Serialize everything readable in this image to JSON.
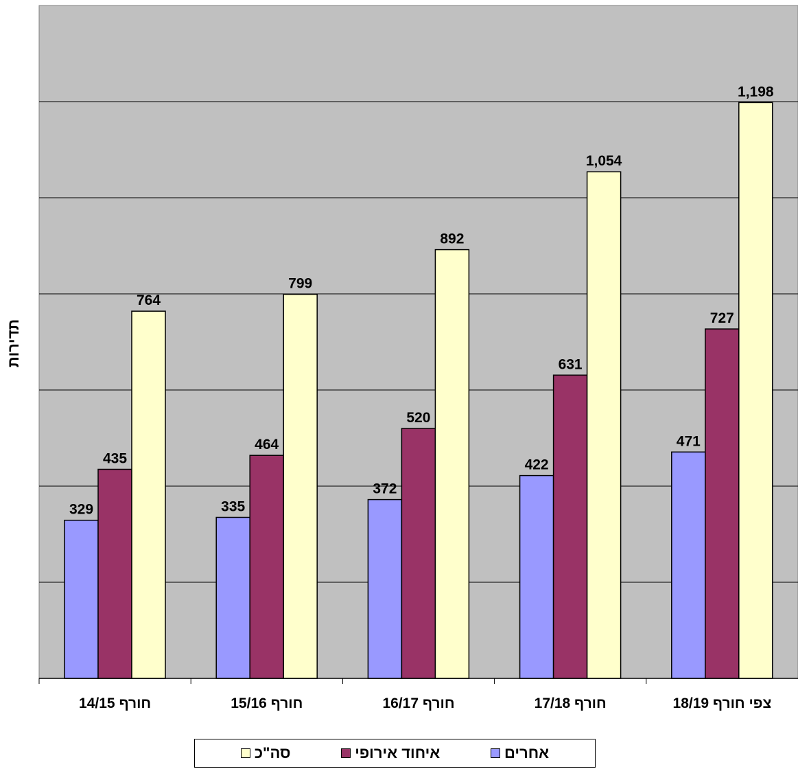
{
  "chart_data": {
    "type": "bar",
    "title": "",
    "xlabel": "",
    "ylabel": "תדירות",
    "categories": [
      "חורף 14/15",
      "חורף 15/16",
      "חורף 16/17",
      "חורף 17/18",
      "צפי חורף 18/19"
    ],
    "series": [
      {
        "name": "אחרים",
        "color": "#9999ff",
        "values": [
          329,
          335,
          372,
          422,
          471
        ],
        "labels": [
          "329",
          "335",
          "372",
          "422",
          "471"
        ]
      },
      {
        "name": "איחוד אירופי",
        "color": "#993366",
        "values": [
          435,
          464,
          520,
          631,
          727
        ],
        "labels": [
          "435",
          "464",
          "520",
          "631",
          "727"
        ]
      },
      {
        "name": "סה\"כ",
        "color": "#ffffcc",
        "values": [
          764,
          799,
          892,
          1054,
          1198
        ],
        "labels": [
          "764",
          "799",
          "892",
          "1,054",
          "1,198"
        ]
      }
    ],
    "ylim": [
      0,
      1400
    ],
    "grid": true,
    "plot_background": "#c0c0c0",
    "legend_position": "bottom"
  }
}
